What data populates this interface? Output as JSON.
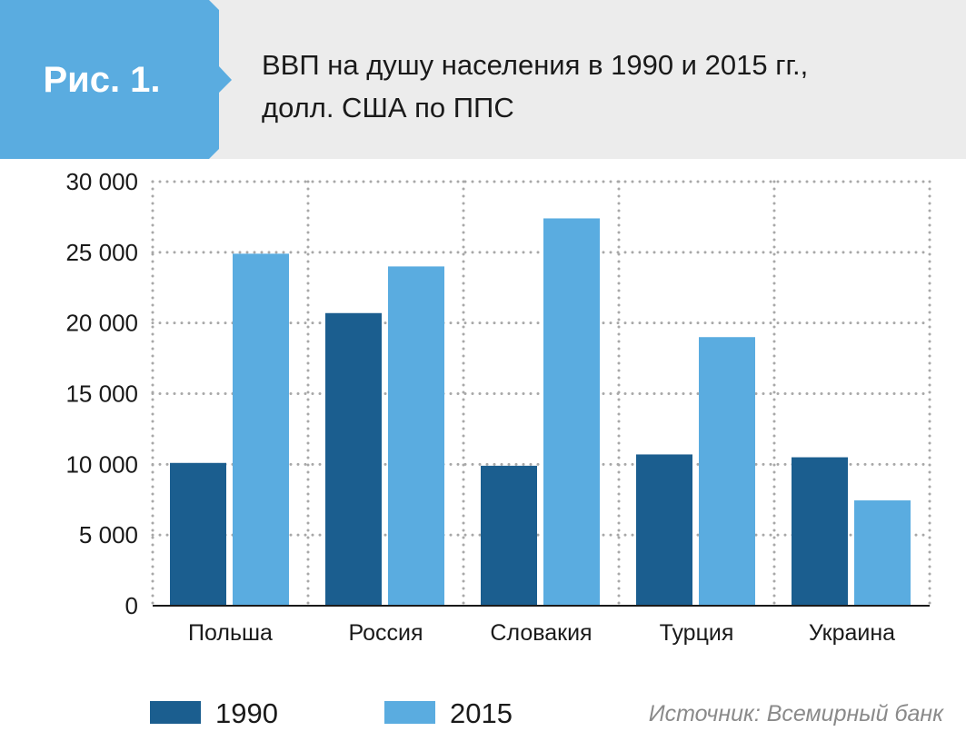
{
  "header": {
    "badge": "Рис. 1.",
    "title_line1": "ВВП на душу населения в 1990 и 2015 гг.,",
    "title_line2": "долл. США по ППС"
  },
  "source": "Источник: Всемирный банк",
  "colors": {
    "s1990": "#1b5e8f",
    "s2015": "#5aace0",
    "header_bg": "#ececec"
  },
  "chart_data": {
    "type": "bar",
    "title": "ВВП на душу населения в 1990 и 2015 гг., долл. США по ППС",
    "categories": [
      "Польша",
      "Россия",
      "Словакия",
      "Турция",
      "Украина"
    ],
    "series": [
      {
        "name": "1990",
        "values": [
          10100,
          20700,
          9900,
          10700,
          10500
        ]
      },
      {
        "name": "2015",
        "values": [
          24900,
          24000,
          27400,
          19000,
          7450
        ]
      }
    ],
    "ylim": [
      0,
      30000
    ],
    "yticks": [
      0,
      5000,
      10000,
      15000,
      20000,
      25000,
      30000
    ],
    "ytick_labels": [
      "0",
      "5 000",
      "10 000",
      "15 000",
      "20 000",
      "25 000",
      "30 000"
    ],
    "grid": true,
    "legend": "bottom-left",
    "xlabel": "",
    "ylabel": ""
  }
}
